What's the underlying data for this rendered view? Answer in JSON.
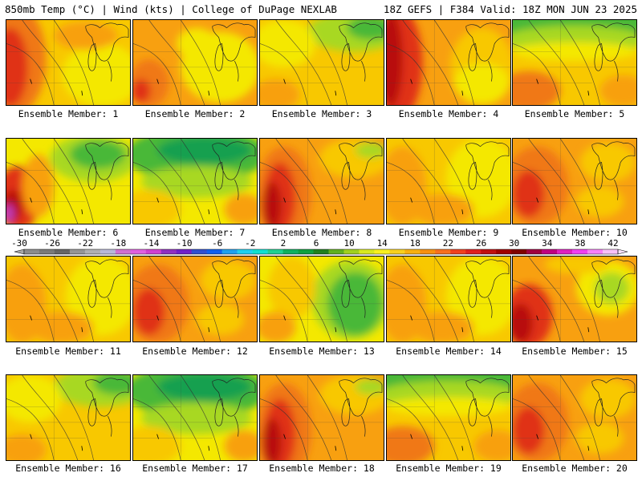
{
  "header": {
    "left": "850mb Temp (°C) | Wind (kts) | College of DuPage NEXLAB",
    "right": "18Z GEFS | F384 Valid: 18Z MON JUN 23 2025"
  },
  "members": [
    {
      "label": "Ensemble Member: 1",
      "pattern": "warmwest"
    },
    {
      "label": "Ensemble Member: 2",
      "pattern": "mixed"
    },
    {
      "label": "Ensemble Member: 3",
      "pattern": "coolne"
    },
    {
      "label": "Ensemble Member: 4",
      "pattern": "hotwest"
    },
    {
      "label": "Ensemble Member: 5",
      "pattern": "coolnorth"
    },
    {
      "label": "Ensemble Member: 6",
      "pattern": "coolne_hotsw"
    },
    {
      "label": "Ensemble Member: 7",
      "pattern": "coolbig"
    },
    {
      "label": "Ensemble Member: 8",
      "pattern": "hotdiag"
    },
    {
      "label": "Ensemble Member: 9",
      "pattern": "mild"
    },
    {
      "label": "Ensemble Member: 10",
      "pattern": "warm"
    },
    {
      "label": "Ensemble Member: 11",
      "pattern": "mild"
    },
    {
      "label": "Ensemble Member: 12",
      "pattern": "warm"
    },
    {
      "label": "Ensemble Member: 13",
      "pattern": "coolest"
    },
    {
      "label": "Ensemble Member: 14",
      "pattern": "mild"
    },
    {
      "label": "Ensemble Member: 15",
      "pattern": "lowne"
    },
    {
      "label": "Ensemble Member: 16",
      "pattern": "coolne"
    },
    {
      "label": "Ensemble Member: 17",
      "pattern": "coolbig"
    },
    {
      "label": "Ensemble Member: 18",
      "pattern": "hotdiag"
    },
    {
      "label": "Ensemble Member: 19",
      "pattern": "coolnorth"
    },
    {
      "label": "Ensemble Member: 20",
      "pattern": "warm"
    }
  ],
  "colorbar": {
    "labels": [
      "-30",
      "-26",
      "-22",
      "-18",
      "-14",
      "-10",
      "-6",
      "-2",
      "2",
      "6",
      "10",
      "14",
      "18",
      "22",
      "26",
      "30",
      "34",
      "38",
      "42"
    ],
    "colors": [
      "#8c8c8c",
      "#7a7a7a",
      "#666666",
      "#959595",
      "#b0b0b0",
      "#b8b8d8",
      "#d070d0",
      "#e060e0",
      "#d040d0",
      "#9030c0",
      "#7020c8",
      "#3050d0",
      "#1060f0",
      "#20a0f0",
      "#20d0f0",
      "#10e0d0",
      "#20d090",
      "#10b060",
      "#10a040",
      "#208020",
      "#60b020",
      "#a0d020",
      "#d8e820",
      "#f8f020",
      "#f8d020",
      "#f8b010",
      "#f89010",
      "#f87020",
      "#f04020",
      "#e02020",
      "#c01010",
      "#a00000",
      "#800000",
      "#a00040",
      "#c00080",
      "#e020c0",
      "#f040f0",
      "#f880f8",
      "#f8c0f8"
    ]
  },
  "palette": {
    "green_dark": "#18a050",
    "green": "#48b838",
    "lime": "#a8d820",
    "yellow": "#f4e800",
    "yellow_orange": "#f8c800",
    "orange": "#f8a010",
    "dark_orange": "#f07818",
    "red": "#e03018",
    "dark_red": "#b81010",
    "magenta": "#c040c0"
  }
}
